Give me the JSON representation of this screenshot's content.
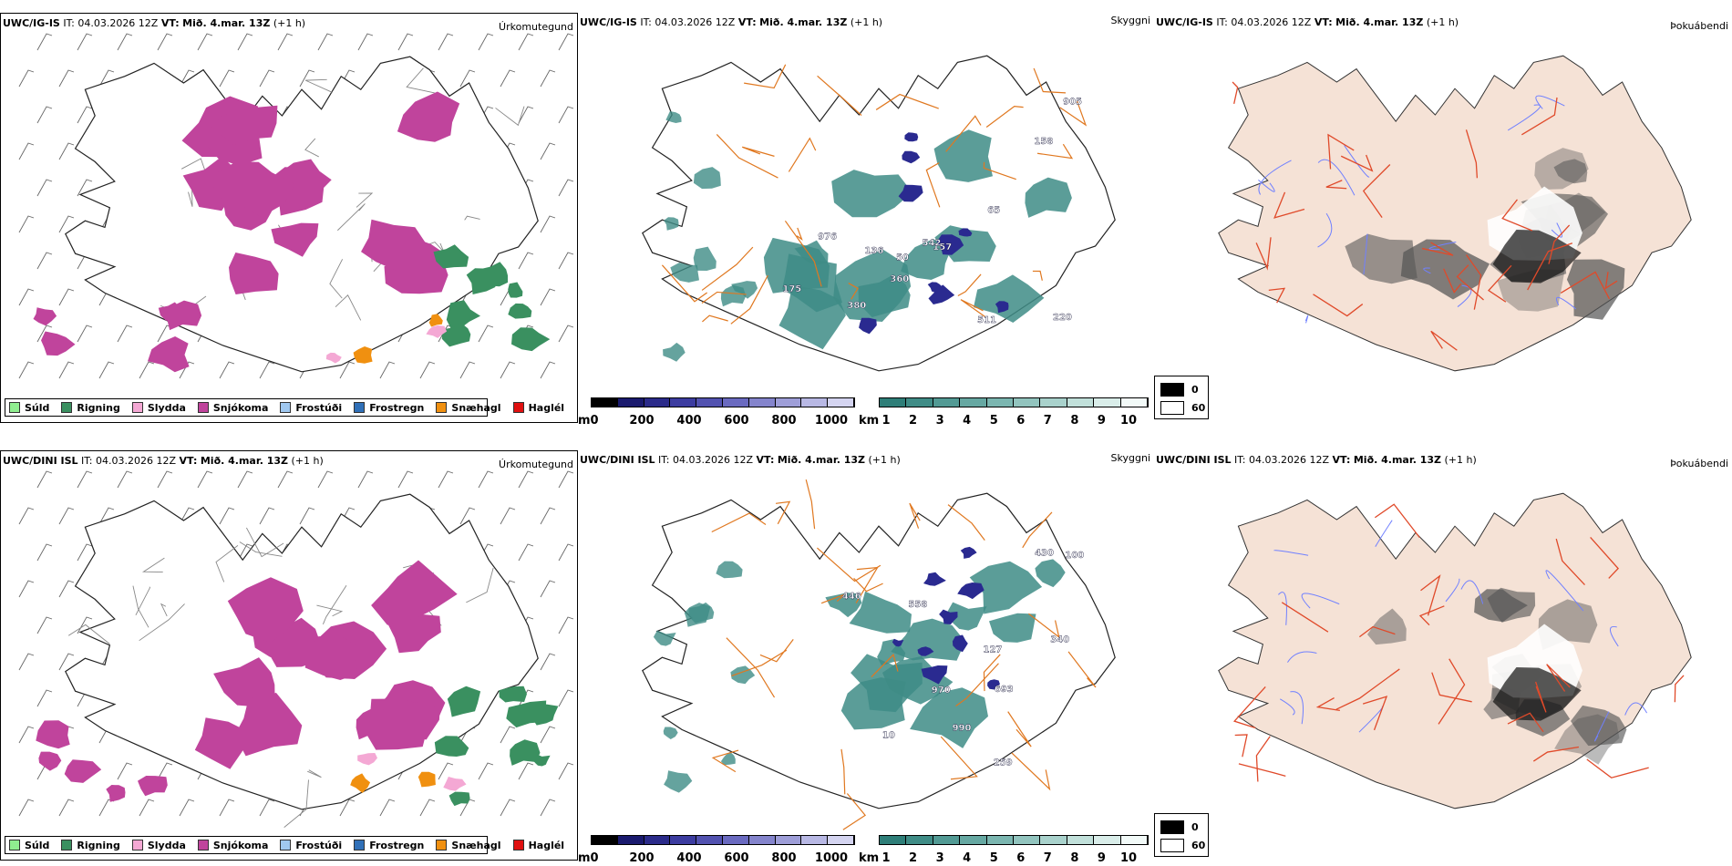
{
  "rows": [
    {
      "model": "UWC/IG-IS",
      "it_label": "IT:",
      "it_value": "04.03.2026 12Z",
      "vt_label": "VT:",
      "vt_value": "Mið. 4.mar. 13Z",
      "lead": "(+1 h)",
      "panel_names": [
        "Úrkomutegund",
        "Skyggni",
        "Þokuábendi"
      ],
      "map_labels": [
        "50",
        "65",
        "157",
        "220",
        "158",
        "380",
        "511",
        "175",
        "360",
        "905",
        "542",
        "136",
        "976"
      ]
    },
    {
      "model": "UWC/DINI ISL",
      "it_label": "IT:",
      "it_value": "04.03.2026 12Z",
      "vt_label": "VT:",
      "vt_value": "Mið. 4.mar. 13Z",
      "lead": "(+1 h)",
      "panel_names": [
        "Úrkomutegund",
        "Skyggni",
        "Þokuábendi"
      ],
      "map_labels": [
        "446",
        "693",
        "970",
        "340",
        "127",
        "558",
        "259",
        "430",
        "10",
        "100",
        "990"
      ]
    }
  ],
  "precip_legend": [
    {
      "label": "Súld",
      "color": "#90ee90"
    },
    {
      "label": "Rigning",
      "color": "#3a9060"
    },
    {
      "label": "Slydda",
      "color": "#f4a8d4"
    },
    {
      "label": "Snjókoma",
      "color": "#c0449c"
    },
    {
      "label": "Frostúði",
      "color": "#a0c8f0"
    },
    {
      "label": "Frostregn",
      "color": "#3070b8"
    },
    {
      "label": "Snæhagl",
      "color": "#f09010"
    },
    {
      "label": "Haglél",
      "color": "#e01010"
    }
  ],
  "vis_colorbar_m": {
    "unit": "m",
    "ticks": [
      "0",
      "200",
      "400",
      "600",
      "800",
      "1000"
    ],
    "colors": [
      "#000000",
      "#1a1a6e",
      "#2b2b8a",
      "#3c3ca0",
      "#5252b0",
      "#6a6ac0",
      "#8484cc",
      "#9e9ed8",
      "#b8b8e4",
      "#d4d4f0"
    ]
  },
  "vis_colorbar_km": {
    "unit": "km",
    "ticks": [
      "1",
      "2",
      "3",
      "4",
      "5",
      "6",
      "7",
      "8",
      "9",
      "10"
    ],
    "colors": [
      "#2e7e78",
      "#3f8c86",
      "#529a94",
      "#66a8a2",
      "#7bb6b0",
      "#92c4be",
      "#a9d2cc",
      "#c1e0da",
      "#d9ede9",
      "#f2faf8"
    ]
  },
  "fog_legend": [
    {
      "label": "0",
      "color": "#000000"
    },
    {
      "label": "60",
      "color": "#ffffff"
    }
  ],
  "colors": {
    "snow": "#c0449c",
    "rain": "#3a9060",
    "sleet": "#f4a8d4",
    "pellets": "#f09010",
    "teal": "#3e8c86",
    "blue": "#2a2a90",
    "roads": "#e07820",
    "roads_fog": "#e04a2a",
    "rivers": "#7080ff",
    "land_fog": "#f5e2d6"
  }
}
